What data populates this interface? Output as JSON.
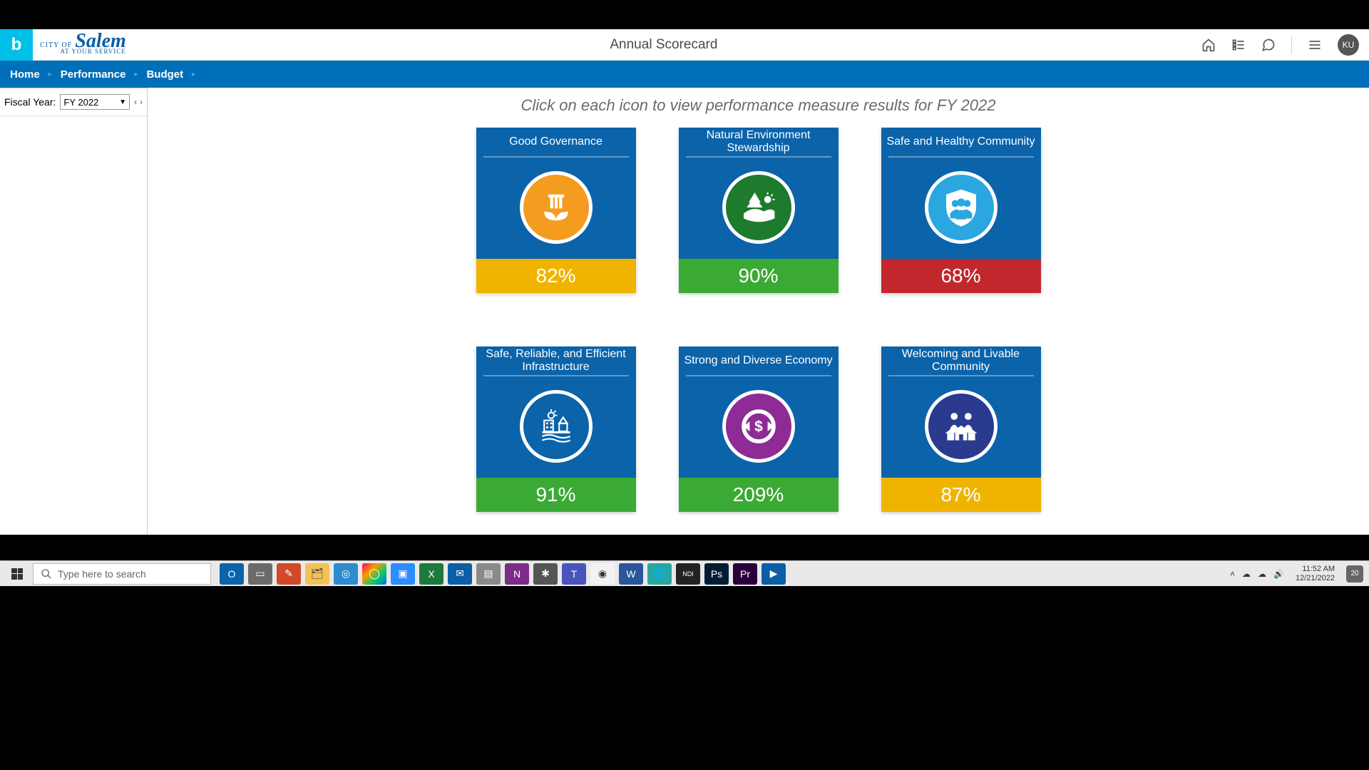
{
  "header": {
    "page_title": "Annual Scorecard",
    "user_initials": "KU",
    "logo_city": "CITY OF",
    "logo_main": "Salem",
    "logo_sub": "AT YOUR SERVICE"
  },
  "nav": {
    "items": [
      "Home",
      "Performance",
      "Budget"
    ]
  },
  "sidebar": {
    "fy_label": "Fiscal Year:",
    "fy_value": "FY 2022"
  },
  "subtitle": "Click on each icon to view performance measure results for FY 2022",
  "cards": [
    {
      "title": "Good Governance",
      "pct": "82%",
      "pct_bg": "#f0b400",
      "icon": "governance",
      "icon_bg": "#f39c1f"
    },
    {
      "title": "Natural Environment Stewardship",
      "pct": "90%",
      "pct_bg": "#3aaa35",
      "icon": "environment",
      "icon_bg": "#1e7a2c"
    },
    {
      "title": "Safe and Healthy Community",
      "pct": "68%",
      "pct_bg": "#c1272d",
      "icon": "safe",
      "icon_bg": "#2aa6e0"
    },
    {
      "title": "Safe, Reliable, and Efficient Infrastructure",
      "pct": "91%",
      "pct_bg": "#3aaa35",
      "icon": "infrastructure",
      "icon_bg": "#0b63aa"
    },
    {
      "title": "Strong and Diverse Economy",
      "pct": "209%",
      "pct_bg": "#3aaa35",
      "icon": "economy",
      "icon_bg": "#8e2b97"
    },
    {
      "title": "Welcoming and Livable Community",
      "pct": "87%",
      "pct_bg": "#f0b400",
      "icon": "livable",
      "icon_bg": "#2a3a8f"
    }
  ],
  "taskbar": {
    "search_placeholder": "Type here to search",
    "time": "11:52 AM",
    "date": "12/21/2022",
    "notif_count": "20",
    "apps": [
      {
        "name": "outlook",
        "bg": "#0b63aa",
        "glyph": "O"
      },
      {
        "name": "onenote-alt",
        "bg": "#6b6b6b",
        "glyph": "▭"
      },
      {
        "name": "snip",
        "bg": "#d04a2a",
        "glyph": "✎"
      },
      {
        "name": "explorer",
        "bg": "#f3c257",
        "glyph": "🗂"
      },
      {
        "name": "edge",
        "bg": "#2f8ad0",
        "glyph": "◎"
      },
      {
        "name": "chrome-alt",
        "bg": "linear",
        "glyph": "◯"
      },
      {
        "name": "zoom",
        "bg": "#2d8cff",
        "glyph": "▣"
      },
      {
        "name": "excel",
        "bg": "#1e7a3c",
        "glyph": "X"
      },
      {
        "name": "mail",
        "bg": "#0a5fa6",
        "glyph": "✉"
      },
      {
        "name": "store",
        "bg": "#8a8a8a",
        "glyph": "▤"
      },
      {
        "name": "onenote",
        "bg": "#7d2c8a",
        "glyph": "N"
      },
      {
        "name": "settings",
        "bg": "#555",
        "glyph": "✱"
      },
      {
        "name": "teams",
        "bg": "#4b53bc",
        "glyph": "T"
      },
      {
        "name": "chrome",
        "bg": "#f2f2f2",
        "glyph": "◉"
      },
      {
        "name": "word",
        "bg": "#2b579a",
        "glyph": "W"
      },
      {
        "name": "globe",
        "bg": "#2aa6a0",
        "glyph": "🌐"
      },
      {
        "name": "ndi",
        "bg": "#222",
        "glyph": "NDI"
      },
      {
        "name": "photoshop",
        "bg": "#001d34",
        "glyph": "Ps"
      },
      {
        "name": "premiere",
        "bg": "#2a003a",
        "glyph": "Pr"
      },
      {
        "name": "movies",
        "bg": "#0a5fa6",
        "glyph": "▶"
      }
    ]
  },
  "colors": {
    "card_bg": "#0b63aa",
    "navbar_bg": "#006fb9"
  }
}
